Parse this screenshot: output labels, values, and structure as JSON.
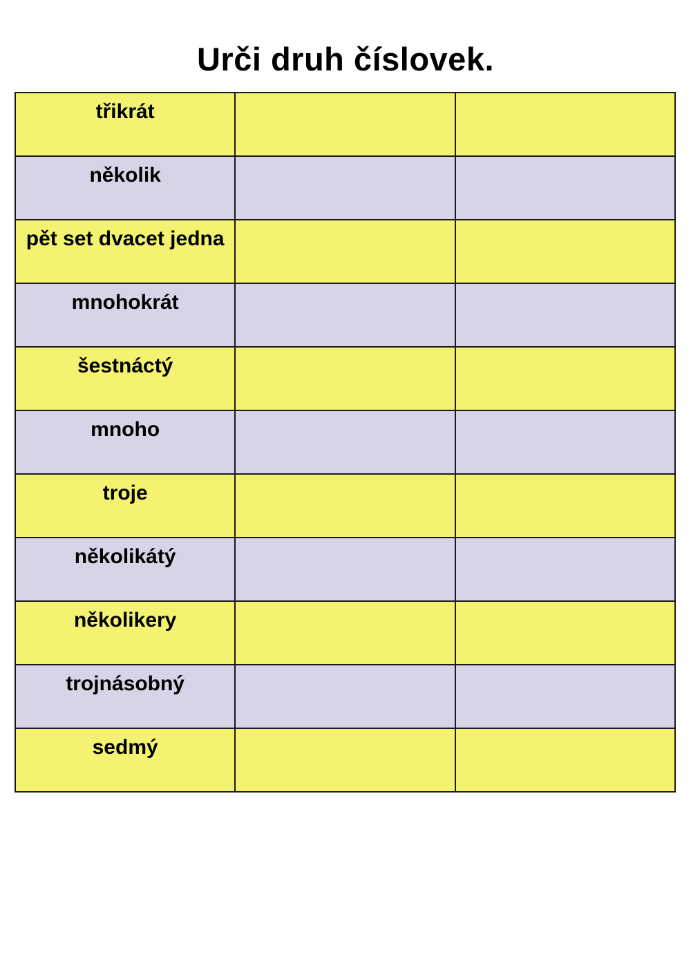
{
  "page": {
    "title": "Urči druh číslovek."
  },
  "colors": {
    "yellow": "#f4f371",
    "lavender": "#d8d3e6",
    "border": "#1a1a1a",
    "text": "#000000",
    "background": "#ffffff"
  },
  "table": {
    "columns": 3,
    "rows": [
      {
        "label": "třikrát",
        "band": "yellow"
      },
      {
        "label": "několik",
        "band": "lavender"
      },
      {
        "label": "pět set dvacet jedna",
        "band": "yellow"
      },
      {
        "label": "mnohokrát",
        "band": "lavender"
      },
      {
        "label": "šestnáctý",
        "band": "yellow"
      },
      {
        "label": "mnoho",
        "band": "lavender"
      },
      {
        "label": "troje",
        "band": "yellow"
      },
      {
        "label": "několikátý",
        "band": "lavender"
      },
      {
        "label": "několikery",
        "band": "yellow"
      },
      {
        "label": "trojnásobný",
        "band": "lavender"
      },
      {
        "label": "sedmý",
        "band": "yellow"
      }
    ]
  }
}
